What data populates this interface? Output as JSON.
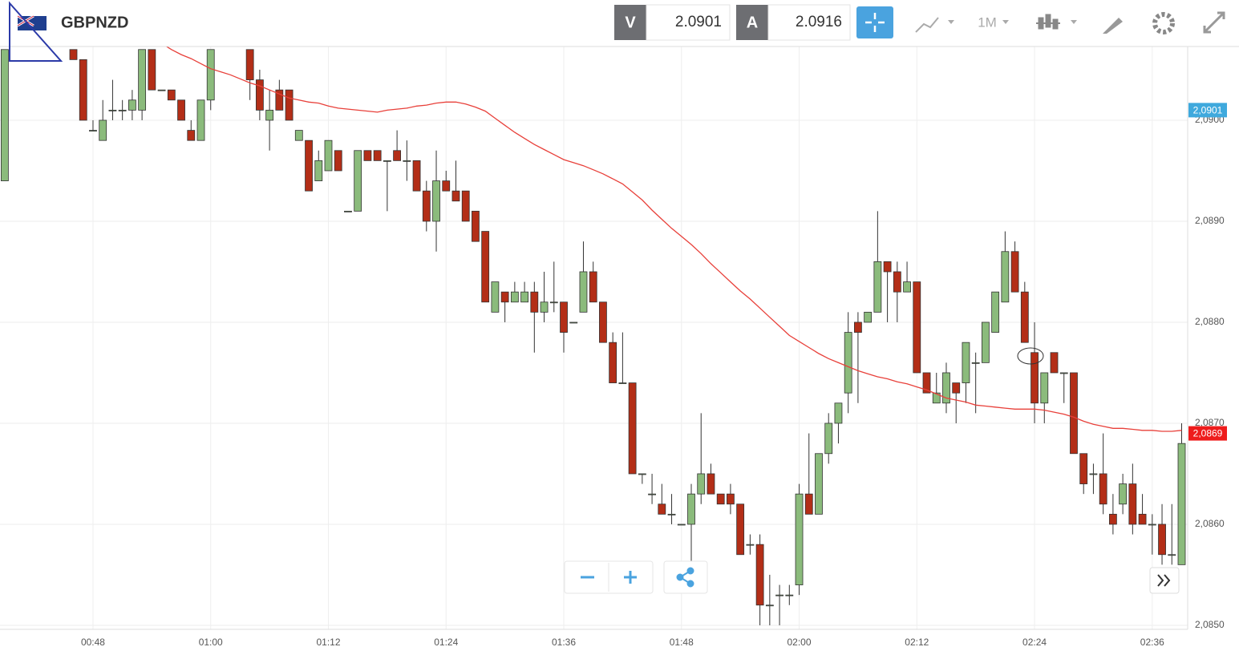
{
  "header": {
    "symbol": "GBPNZD",
    "bid_label": "V",
    "bid": "2.0901",
    "ask_label": "A",
    "ask": "2.0916",
    "timeframe": "1M"
  },
  "chart_data": {
    "type": "candlestick",
    "categories": [
      null,
      null,
      null,
      null,
      null,
      null,
      null,
      null,
      null,
      "00:48",
      null,
      null,
      null,
      null,
      null,
      null,
      null,
      null,
      null,
      null,
      null,
      "01:00",
      null,
      null,
      null,
      null,
      null,
      null,
      null,
      null,
      null,
      null,
      null,
      "01:12",
      null,
      null,
      null,
      null,
      null,
      null,
      null,
      null,
      null,
      null,
      null,
      "01:24",
      null,
      null,
      null,
      null,
      null,
      null,
      null,
      null,
      null,
      null,
      null,
      "01:36",
      null,
      null,
      null,
      null,
      null,
      null,
      null,
      null,
      null,
      null,
      null,
      "01:48",
      null,
      null,
      null,
      null,
      null,
      null,
      null,
      null,
      null,
      null,
      null,
      "02:00",
      null,
      null,
      null,
      null,
      null,
      null,
      null,
      null,
      null,
      null,
      null,
      "02:12",
      null,
      null,
      null,
      null,
      null,
      null,
      null,
      null,
      null,
      null,
      null,
      "02:24",
      null,
      null,
      null,
      null,
      null,
      null,
      null,
      null,
      null,
      null,
      null,
      "02:36",
      null,
      null,
      null
    ],
    "open": [
      2.0894,
      null,
      null,
      null,
      null,
      null,
      null,
      2.0907,
      2.0906,
      2.0899,
      2.0898,
      2.0901,
      2.0901,
      2.0901,
      2.0901,
      2.0907,
      2.0903,
      2.0903,
      2.0902,
      2.0899,
      2.0898,
      2.0902,
      null,
      null,
      null,
      2.0907,
      2.0904,
      2.09,
      2.0903,
      2.0903,
      2.0898,
      2.0898,
      2.0894,
      2.0895,
      2.0897,
      2.0891,
      2.0891,
      2.0897,
      2.0897,
      2.0896,
      2.0897,
      2.0896,
      2.0896,
      2.0893,
      2.089,
      2.0894,
      2.0893,
      2.0893,
      2.0891,
      2.0889,
      2.0881,
      2.0883,
      2.0882,
      2.0882,
      2.0883,
      2.0881,
      2.0882,
      2.0882,
      2.088,
      2.0881,
      2.0885,
      2.0882,
      2.0878,
      2.0874,
      2.0874,
      2.0865,
      2.0863,
      2.0862,
      2.0861,
      2.086,
      2.086,
      2.0863,
      2.0865,
      2.0863,
      2.0863,
      2.0862,
      2.0858,
      2.0858,
      2.0852,
      2.0853,
      2.0853,
      2.0854,
      2.0863,
      2.0861,
      2.0867,
      2.087,
      2.0873,
      2.088,
      2.088,
      2.0881,
      2.0886,
      2.0885,
      2.0883,
      2.0884,
      2.0875,
      2.0872,
      2.0872,
      2.0874,
      2.0874,
      2.0876,
      2.0876,
      2.0879,
      2.0882,
      2.0887,
      2.0883,
      2.0877,
      2.0872,
      2.0877,
      2.0875,
      2.0875,
      2.0867,
      2.0865,
      2.0865,
      2.0861,
      2.0862,
      2.0864,
      2.0861,
      2.086,
      2.086,
      2.0857,
      2.0856
    ],
    "high": [
      2.0907,
      null,
      null,
      null,
      null,
      null,
      null,
      2.0907,
      2.0906,
      2.09,
      2.0902,
      2.0904,
      2.0902,
      2.0903,
      2.0907,
      2.0907,
      2.0903,
      2.0903,
      2.0902,
      2.09,
      2.0902,
      2.0907,
      null,
      null,
      null,
      2.0907,
      2.0905,
      2.0903,
      2.0904,
      2.0903,
      2.0899,
      2.0898,
      2.0897,
      2.0898,
      2.0897,
      2.0891,
      2.0897,
      2.0897,
      2.0897,
      2.0896,
      2.0899,
      2.0898,
      2.0896,
      2.0894,
      2.0897,
      2.0895,
      2.0896,
      2.0893,
      2.0891,
      2.0889,
      2.0884,
      2.0883,
      2.0884,
      2.0884,
      2.0884,
      2.0885,
      2.0886,
      2.0882,
      2.088,
      2.0888,
      2.0886,
      2.0882,
      2.0879,
      2.0879,
      2.0874,
      2.0865,
      2.0865,
      2.0864,
      2.0863,
      2.086,
      2.0864,
      2.0871,
      2.0866,
      2.0863,
      2.0864,
      2.0862,
      2.0859,
      2.0859,
      2.0855,
      2.0854,
      2.0854,
      2.0864,
      2.0869,
      2.0867,
      2.0871,
      2.0872,
      2.0881,
      2.0881,
      2.0881,
      2.0891,
      2.0886,
      2.0886,
      2.0886,
      2.0884,
      2.0875,
      2.0875,
      2.0876,
      2.0874,
      2.0878,
      2.0877,
      2.088,
      2.0883,
      2.0889,
      2.0888,
      2.0884,
      2.088,
      2.0875,
      2.0877,
      2.0875,
      2.0875,
      2.0867,
      2.0866,
      2.0869,
      2.0863,
      2.0865,
      2.0866,
      2.0863,
      2.0861,
      2.0862,
      2.0862,
      2.087
    ],
    "low": [
      2.0894,
      null,
      null,
      null,
      null,
      null,
      null,
      2.0906,
      2.09,
      2.0899,
      2.0898,
      2.09,
      2.09,
      2.09,
      2.09,
      2.0903,
      2.0903,
      2.0902,
      2.09,
      2.0898,
      2.0898,
      2.0901,
      null,
      null,
      null,
      2.0902,
      2.09,
      2.0897,
      2.0901,
      2.09,
      2.0898,
      2.0893,
      2.0894,
      2.0895,
      2.0895,
      2.0891,
      2.0891,
      2.0896,
      2.0896,
      2.0891,
      2.0896,
      2.0894,
      2.0893,
      2.0889,
      2.0887,
      2.0893,
      2.0892,
      2.089,
      2.0888,
      2.0882,
      2.0881,
      2.088,
      2.0882,
      2.0882,
      2.0877,
      2.088,
      2.0881,
      2.0877,
      2.088,
      2.0881,
      2.0882,
      2.0878,
      2.0874,
      2.0874,
      2.0865,
      2.0864,
      2.0862,
      2.0861,
      2.086,
      2.086,
      2.0856,
      2.0862,
      2.0863,
      2.0862,
      2.0861,
      2.0857,
      2.0857,
      2.085,
      2.085,
      2.085,
      2.0852,
      2.0853,
      2.0861,
      2.0861,
      2.0866,
      2.0868,
      2.0871,
      2.0872,
      2.088,
      2.0881,
      2.088,
      2.088,
      2.0883,
      2.0875,
      2.0873,
      2.0872,
      2.0871,
      2.087,
      2.0872,
      2.0871,
      2.0876,
      2.0879,
      2.0882,
      2.0883,
      2.0878,
      2.087,
      2.087,
      2.0875,
      2.0872,
      2.0867,
      2.0863,
      2.0863,
      2.0861,
      2.0859,
      2.0861,
      2.0859,
      2.086,
      2.0857,
      2.0856,
      2.0856,
      2.0856
    ],
    "close": [
      2.0907,
      null,
      null,
      null,
      null,
      null,
      null,
      2.0906,
      2.09,
      2.0899,
      2.09,
      2.0901,
      2.0901,
      2.0902,
      2.0907,
      2.0903,
      2.0903,
      2.0902,
      2.09,
      2.0898,
      2.0902,
      2.0907,
      null,
      null,
      null,
      2.0904,
      2.0901,
      2.0901,
      2.0901,
      2.09,
      2.0899,
      2.0893,
      2.0896,
      2.0898,
      2.0895,
      2.0891,
      2.0897,
      2.0896,
      2.0896,
      2.0896,
      2.0896,
      2.0896,
      2.0893,
      2.089,
      2.0894,
      2.0893,
      2.0892,
      2.089,
      2.0888,
      2.0882,
      2.0884,
      2.0882,
      2.0883,
      2.0883,
      2.0881,
      2.0882,
      2.0882,
      2.0879,
      2.088,
      2.0885,
      2.0882,
      2.0878,
      2.0874,
      2.0874,
      2.0865,
      2.0865,
      2.0863,
      2.0861,
      2.0861,
      2.086,
      2.0863,
      2.0865,
      2.0863,
      2.0862,
      2.0862,
      2.0857,
      2.0858,
      2.0852,
      2.0852,
      2.0853,
      2.0853,
      2.0863,
      2.0861,
      2.0867,
      2.087,
      2.0872,
      2.0879,
      2.0879,
      2.0881,
      2.0886,
      2.0885,
      2.0883,
      2.0884,
      2.0875,
      2.0873,
      2.0873,
      2.0875,
      2.0873,
      2.0878,
      2.0876,
      2.088,
      2.0883,
      2.0887,
      2.0883,
      2.0878,
      2.0872,
      2.0875,
      2.0875,
      2.0875,
      2.0867,
      2.0864,
      2.0865,
      2.0862,
      2.086,
      2.0864,
      2.086,
      2.086,
      2.086,
      2.0857,
      2.0857,
      2.0868
    ],
    "up_color": "#8bbb7c",
    "down_color": "#b32e17",
    "overlay": {
      "color": "#e8403a",
      "values": [
        null,
        null,
        null,
        null,
        null,
        null,
        null,
        null,
        null,
        null,
        null,
        null,
        null,
        null,
        null,
        null,
        2.09076,
        2.0907,
        2.09065,
        2.09061,
        2.09056,
        2.09051,
        2.09048,
        2.09045,
        2.09041,
        2.09037,
        2.09034,
        2.0903,
        2.09026,
        2.09022,
        2.0902,
        2.09018,
        2.09017,
        2.09014,
        2.09012,
        2.09011,
        2.0901,
        2.09009,
        2.09008,
        2.0901,
        2.09011,
        2.09012,
        2.09014,
        2.09015,
        2.09017,
        2.09018,
        2.09018,
        2.09016,
        2.09013,
        2.09009,
        2.09002,
        2.08995,
        2.08988,
        2.08982,
        2.08976,
        2.08971,
        2.08966,
        2.08961,
        2.08958,
        2.08955,
        2.08951,
        2.08947,
        2.08942,
        2.08937,
        2.08929,
        2.08921,
        2.08911,
        2.08902,
        2.08893,
        2.08885,
        2.08877,
        2.08868,
        2.08858,
        2.08849,
        2.0884,
        2.08831,
        2.08823,
        2.08814,
        2.08805,
        2.08796,
        2.08787,
        2.08781,
        2.08775,
        2.08769,
        2.08764,
        2.0876,
        2.08756,
        2.08752,
        2.08749,
        2.08746,
        2.08744,
        2.08741,
        2.08739,
        2.08736,
        2.08733,
        2.08729,
        2.08725,
        2.08723,
        2.08721,
        2.08718,
        2.08717,
        2.08716,
        2.08715,
        2.08714,
        2.08714,
        2.08714,
        2.08713,
        2.08711,
        2.08709,
        2.08706,
        2.08702,
        2.08699,
        2.08697,
        2.08695,
        2.08695,
        2.08694,
        2.08693,
        2.08693,
        2.08692,
        2.08692,
        2.08693
      ]
    },
    "ylim": [
      2.08496,
      2.09073
    ],
    "yticks": [
      {
        "value": 2.085,
        "label": "2,0850"
      },
      {
        "value": 2.086,
        "label": "2,0860"
      },
      {
        "value": 2.087,
        "label": "2,0870"
      },
      {
        "value": 2.088,
        "label": "2,0880"
      },
      {
        "value": 2.089,
        "label": "2,0890"
      },
      {
        "value": 2.09,
        "label": "2,0900"
      }
    ],
    "grid": true,
    "price_markers": [
      {
        "value": 2.0901,
        "label": "2,0901",
        "color": "#3fa9dd"
      },
      {
        "value": 2.0869,
        "label": "2,0869",
        "color": "#ee1c1c"
      }
    ]
  }
}
